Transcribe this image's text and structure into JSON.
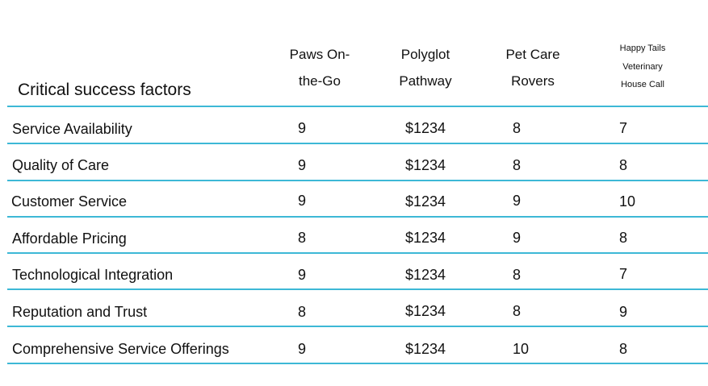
{
  "table": {
    "title": "Critical success factors",
    "columns": [
      {
        "lines": [
          "Paws On-",
          "the-Go"
        ]
      },
      {
        "lines": [
          "Polyglot",
          "Pathway"
        ]
      },
      {
        "lines": [
          "Pet Care",
          "Rovers"
        ]
      },
      {
        "lines": [
          "Happy Tails",
          "Veterinary",
          "House Call"
        ]
      }
    ],
    "rows": [
      {
        "label": "Service Availability",
        "values": [
          "9",
          "$1234",
          "8",
          "7"
        ]
      },
      {
        "label": "Quality of Care",
        "values": [
          "9",
          "$1234",
          "8",
          "8"
        ]
      },
      {
        "label": "Customer Service",
        "values": [
          "9",
          "$1234",
          "9",
          "10"
        ]
      },
      {
        "label": "Affordable Pricing",
        "values": [
          "8",
          "$1234",
          "9",
          "8"
        ]
      },
      {
        "label": "Technological Integration",
        "values": [
          "9",
          "$1234",
          "8",
          "7"
        ]
      },
      {
        "label": "Reputation and Trust",
        "values": [
          "8",
          "$1234",
          "8",
          "9"
        ]
      },
      {
        "label": "Comprehensive Service Offerings",
        "values": [
          "9",
          "$1234",
          "10",
          "8"
        ]
      }
    ],
    "rule_color": "#3db8d6"
  }
}
